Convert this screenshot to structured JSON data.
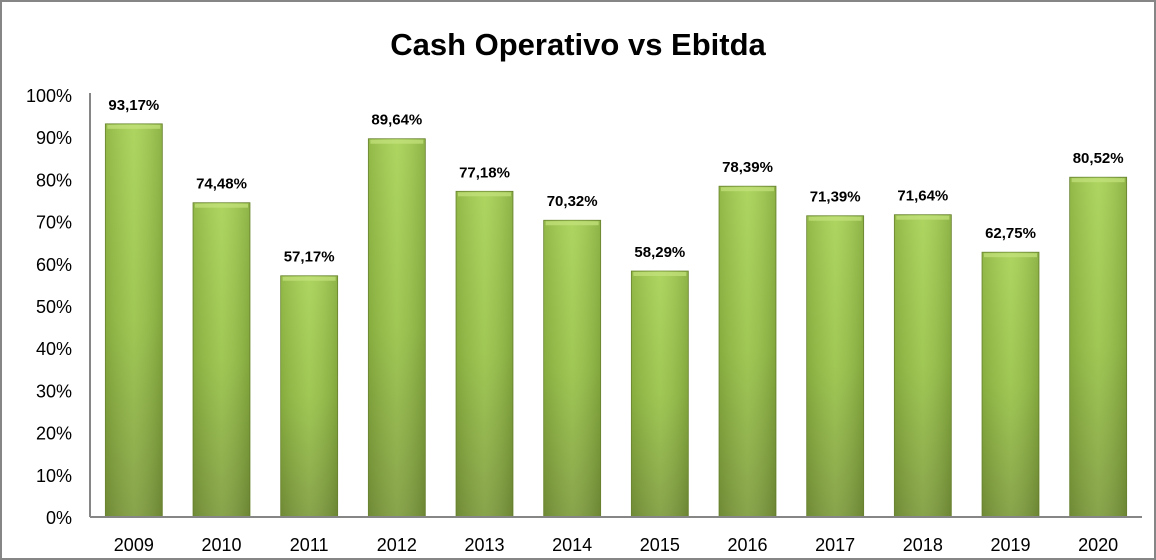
{
  "chart_data": {
    "type": "bar",
    "title": "Cash Operativo vs Ebitda",
    "xlabel": "",
    "ylabel": "",
    "categories": [
      "2009",
      "2010",
      "2011",
      "2012",
      "2013",
      "2014",
      "2015",
      "2016",
      "2017",
      "2018",
      "2019",
      "2020"
    ],
    "values": [
      93.17,
      74.48,
      57.17,
      89.64,
      77.18,
      70.32,
      58.29,
      78.39,
      71.39,
      71.64,
      62.75,
      80.52
    ],
    "data_labels": [
      "93,17%",
      "74,48%",
      "57,17%",
      "89,64%",
      "77,18%",
      "70,32%",
      "58,29%",
      "78,39%",
      "71,39%",
      "71,64%",
      "62,75%",
      "80,52%"
    ],
    "ylim": [
      0,
      100
    ],
    "yticks": [
      "0%",
      "10%",
      "20%",
      "30%",
      "40%",
      "50%",
      "60%",
      "70%",
      "80%",
      "90%",
      "100%"
    ],
    "grid": false,
    "legend": "none",
    "bar_color": "#92bb45"
  }
}
